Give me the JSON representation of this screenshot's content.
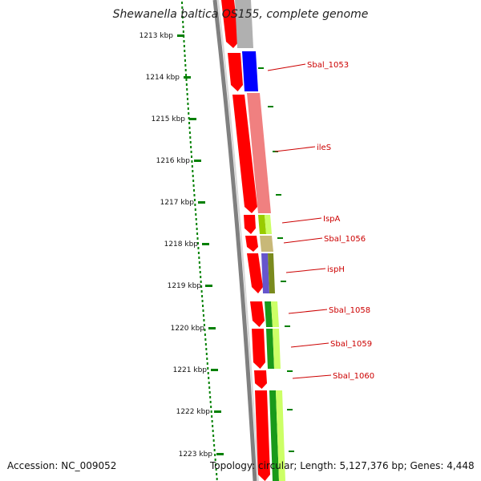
{
  "title": "Shewanella baltica OS155, complete genome",
  "accession_label": "Accession: NC_009052",
  "summary_label": "Topology: circular; Length: 5,127,376 bp; Genes: 4,448",
  "ticks": [
    "1213 kbp",
    "1214 kbp",
    "1215 kbp",
    "1216 kbp",
    "1217 kbp",
    "1218 kbp",
    "1219 kbp",
    "1220 kbp",
    "1221 kbp",
    "1222 kbp",
    "1223 kbp"
  ],
  "gene_labels": [
    "Sbal_1053",
    "ileS",
    "IspA",
    "Sbal_1056",
    "ispH",
    "Sbal_1058",
    "Sbal_1059",
    "Sbal_1060"
  ],
  "colors": {
    "forward_gene": "#ff0000",
    "backbone": "#808080",
    "scale": "#008000",
    "label": "#cc0000",
    "leader": "#cc0000",
    "blue": "#0000ff",
    "pink": "#f08080",
    "lime": "#99cc00",
    "khaki": "#c8b878",
    "olive": "#7a8a1e",
    "violet": "#6655cc",
    "green": "#1a9a1a",
    "pale_green": "#ccff66",
    "gray": "#b0b0b0"
  }
}
